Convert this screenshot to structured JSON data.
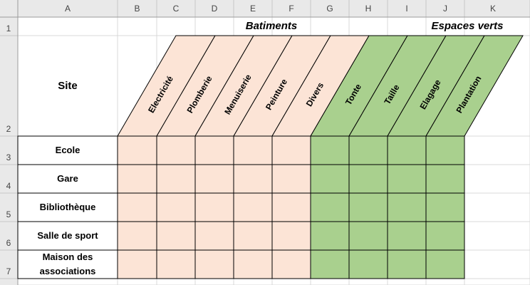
{
  "columns": [
    "A",
    "B",
    "C",
    "D",
    "E",
    "F",
    "G",
    "H",
    "I",
    "J",
    "K"
  ],
  "rows": [
    "1",
    "2",
    "3",
    "4",
    "5",
    "6",
    "7"
  ],
  "groups": {
    "batiments": "Batiments",
    "espaces_verts": "Espaces verts"
  },
  "site_label": "Site",
  "tasks": [
    "Electricité",
    "Plomberie",
    "Menuiserie",
    "Peinture",
    "Divers",
    "Tonte",
    "Taille",
    "Elagage",
    "Plantation"
  ],
  "sites": [
    "Ecole",
    "Gare",
    "Bibliothèque",
    "Salle de sport",
    "Maison des associations"
  ]
}
